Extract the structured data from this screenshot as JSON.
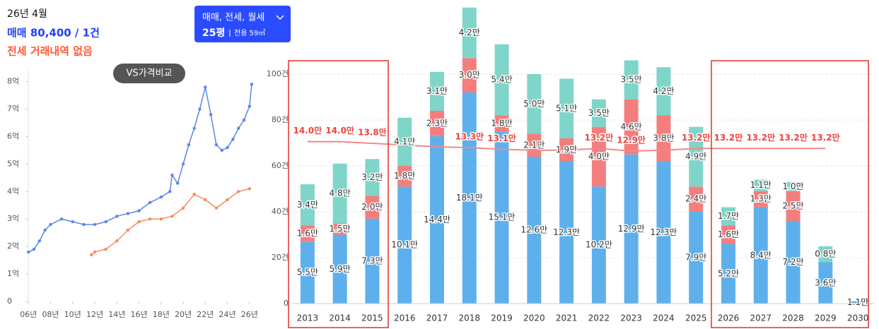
{
  "header": {
    "month": "26년 4월",
    "trade": "매매 80,400 / 1건",
    "jeonse": "전세 거래내역 없음"
  },
  "compare_button": "VS가격비교",
  "filter": {
    "types": "매매, 전세, 월세",
    "size": "25평",
    "area": "전용 59㎡"
  },
  "chart_data": [
    {
      "type": "line",
      "series": [
        {
          "color": "#5b86e5",
          "x": [
            2006,
            2006.5,
            2007,
            2007.5,
            2008,
            2009,
            2010,
            2011,
            2012,
            2013,
            2014,
            2015,
            2016,
            2017,
            2018,
            2018.8,
            2019,
            2019.5,
            2020,
            2020.5,
            2021,
            2021.5,
            2022,
            2022.5,
            2023,
            2023.5,
            2024,
            2024.5,
            2025,
            2025.5,
            2026,
            2026.2
          ],
          "values": [
            1.8,
            1.9,
            2.2,
            2.6,
            2.8,
            3.0,
            2.9,
            2.8,
            2.8,
            2.9,
            3.1,
            3.2,
            3.3,
            3.6,
            3.8,
            4.0,
            4.6,
            4.3,
            5.0,
            5.7,
            6.3,
            7.0,
            7.8,
            6.8,
            5.7,
            5.5,
            5.6,
            5.9,
            6.3,
            6.6,
            7.1,
            7.9
          ]
        },
        {
          "color": "#f58c5a",
          "x": [
            2011.7,
            2012,
            2013,
            2014,
            2015,
            2016,
            2017,
            2018,
            2019,
            2020,
            2021,
            2022,
            2023,
            2024,
            2025,
            2026
          ],
          "values": [
            1.7,
            1.8,
            1.9,
            2.2,
            2.6,
            2.9,
            3.0,
            3.0,
            3.1,
            3.4,
            3.9,
            3.7,
            3.4,
            3.7,
            4.0,
            4.1
          ]
        }
      ],
      "xlim": [
        2005.6,
        2027.1
      ],
      "xticks": [
        {
          "value": 2006,
          "label": "06년"
        },
        {
          "value": 2008,
          "label": "08년"
        },
        {
          "value": 2010,
          "label": "10년"
        },
        {
          "value": 2012,
          "label": "12년"
        },
        {
          "value": 2014,
          "label": "14년"
        },
        {
          "value": 2016,
          "label": "16년"
        },
        {
          "value": 2018,
          "label": "18년"
        },
        {
          "value": 2020,
          "label": "20년"
        },
        {
          "value": 2022,
          "label": "22년"
        },
        {
          "value": 2024,
          "label": "24년"
        },
        {
          "value": 2026,
          "label": "26년"
        }
      ],
      "ylim": [
        0,
        8.4
      ],
      "yticks": [
        0,
        {
          "value": 1,
          "label": "1억"
        },
        {
          "value": 2,
          "label": "2억"
        },
        {
          "value": 3,
          "label": "3억"
        },
        {
          "value": 4,
          "label": "4억"
        },
        {
          "value": 5,
          "label": "5억"
        },
        {
          "value": 6,
          "label": "6억"
        },
        {
          "value": 7,
          "label": "7억"
        },
        {
          "value": 8,
          "label": "8억"
        }
      ]
    },
    {
      "type": "bar",
      "stacked": true,
      "categories": [
        "2013",
        "2014",
        "2015",
        "2016",
        "2017",
        "2018",
        "2019",
        "2020",
        "2021",
        "2022",
        "2023",
        "2024",
        "2025",
        "2026",
        "2027",
        "2028",
        "2029",
        "2030"
      ],
      "series": [
        {
          "color": "#5eb0ec",
          "values": [
            27,
            30,
            37,
            51,
            73,
            92,
            75,
            64,
            62,
            51,
            65,
            62,
            40,
            26,
            42,
            36,
            18,
            1
          ],
          "labels": [
            "5.5만",
            "5.9만",
            "7.3만",
            "10.1만",
            "14.4만",
            "18.1만",
            "15.1만",
            "12.6만",
            "12.3만",
            "10.2만",
            "12.9만",
            "12.3만",
            "7.9만",
            "5.2만",
            "8.4만",
            "7.2만",
            "3.6만",
            "1.1만"
          ]
        },
        {
          "color": "#f47e7e",
          "values": [
            7,
            5,
            10,
            9,
            11,
            15,
            7,
            10,
            10,
            26,
            24,
            20,
            11,
            8,
            7,
            13,
            0,
            0
          ],
          "labels": [
            "1.6만",
            "1.5만",
            "2.0만",
            "1.8만",
            "2.3만",
            "3.0만",
            "1.8만",
            "2.1만",
            "1.9만",
            "4.0만",
            "4.6만",
            "3.8만",
            "2.4만",
            "1.6만",
            "1.3만",
            "2.5만",
            null,
            null
          ]
        },
        {
          "color": "#7fd5c9",
          "values": [
            18,
            26,
            16,
            21,
            17,
            22,
            31,
            26,
            26,
            12,
            17,
            21,
            26,
            8,
            5,
            4,
            7,
            0
          ],
          "labels": [
            "3.4만",
            "4.8만",
            "3.2만",
            "4.1만",
            "3.1만",
            "4.2만",
            "5.4만",
            "5.0만",
            "5.1만",
            "3.5만",
            "3.5만",
            "4.2만",
            "4.9만",
            "1.7만",
            "1.1만",
            "1.0만",
            "0.8만",
            null
          ]
        },
        {
          "type": "line",
          "axis": "y2",
          "color": "#f08a8a",
          "values": [
            14.0,
            14.0,
            13.8,
            13.6,
            13.4,
            13.3,
            13.1,
            13.0,
            13.0,
            13.2,
            12.9,
            13.0,
            13.2,
            13.2,
            13.2,
            13.2,
            13.2,
            null
          ],
          "value_labels": [
            "14.0만",
            "14.0만",
            "13.8만",
            null,
            null,
            "13.3만",
            "13.1만",
            null,
            null,
            "13.2만",
            "12.9만",
            null,
            "13.2만",
            "13.2만",
            "13.2만",
            "13.2만",
            "13.2만",
            null
          ]
        }
      ],
      "ylim": [
        0,
        130
      ],
      "yticks": [
        0,
        {
          "value": 20,
          "label": "20건"
        },
        {
          "value": 40,
          "label": "40건"
        },
        {
          "value": 60,
          "label": "60건"
        },
        {
          "value": 80,
          "label": "80건"
        },
        {
          "value": 100,
          "label": "100건"
        }
      ],
      "y2lim": [
        -5,
        30
      ],
      "grid": true
    }
  ]
}
